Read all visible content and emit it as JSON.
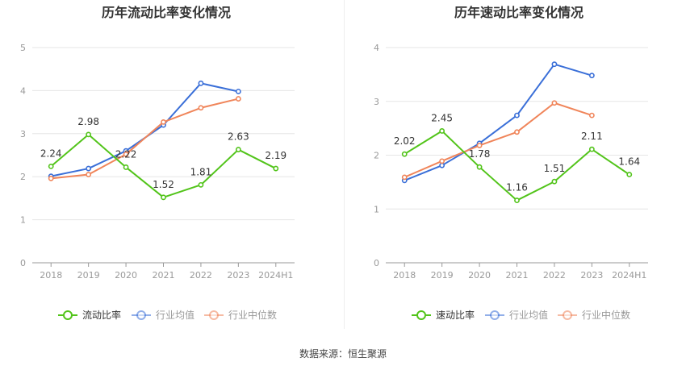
{
  "source_text": "数据来源：恒生聚源",
  "chart_data": [
    {
      "type": "line",
      "title": "历年流动比率变化情况",
      "categories": [
        "2018",
        "2019",
        "2020",
        "2021",
        "2022",
        "2023",
        "2024H1"
      ],
      "ylim": [
        0,
        5
      ],
      "yticks": [
        0,
        1,
        2,
        3,
        4,
        5
      ],
      "grid": true,
      "legend": "bottom",
      "series": [
        {
          "name": "流动比率",
          "color": "#52c41a",
          "values": [
            2.24,
            2.98,
            2.22,
            1.52,
            1.81,
            2.63,
            2.19
          ],
          "labels": [
            "2.24",
            "2.98",
            "2.22",
            "1.52",
            "1.81",
            "2.63",
            "2.19"
          ]
        },
        {
          "name": "行业均值",
          "color": "#3a6fd8",
          "values": [
            2.01,
            2.19,
            2.6,
            3.2,
            4.17,
            3.98,
            null
          ]
        },
        {
          "name": "行业中位数",
          "color": "#f0855a",
          "values": [
            1.96,
            2.05,
            2.52,
            3.27,
            3.6,
            3.81,
            null
          ]
        }
      ]
    },
    {
      "type": "line",
      "title": "历年速动比率变化情况",
      "categories": [
        "2018",
        "2019",
        "2020",
        "2021",
        "2022",
        "2023",
        "2024H1"
      ],
      "ylim": [
        0,
        4
      ],
      "yticks": [
        0,
        1,
        2,
        3,
        4
      ],
      "grid": true,
      "legend": "bottom",
      "series": [
        {
          "name": "速动比率",
          "color": "#52c41a",
          "values": [
            2.02,
            2.45,
            1.78,
            1.16,
            1.51,
            2.11,
            1.64
          ],
          "labels": [
            "2.02",
            "2.45",
            "1.78",
            "1.16",
            "1.51",
            "2.11",
            "1.64"
          ]
        },
        {
          "name": "行业均值",
          "color": "#3a6fd8",
          "values": [
            1.53,
            1.81,
            2.22,
            2.74,
            3.69,
            3.48,
            null
          ]
        },
        {
          "name": "行业中位数",
          "color": "#f0855a",
          "values": [
            1.59,
            1.89,
            2.18,
            2.43,
            2.97,
            2.74,
            null
          ]
        }
      ]
    }
  ]
}
